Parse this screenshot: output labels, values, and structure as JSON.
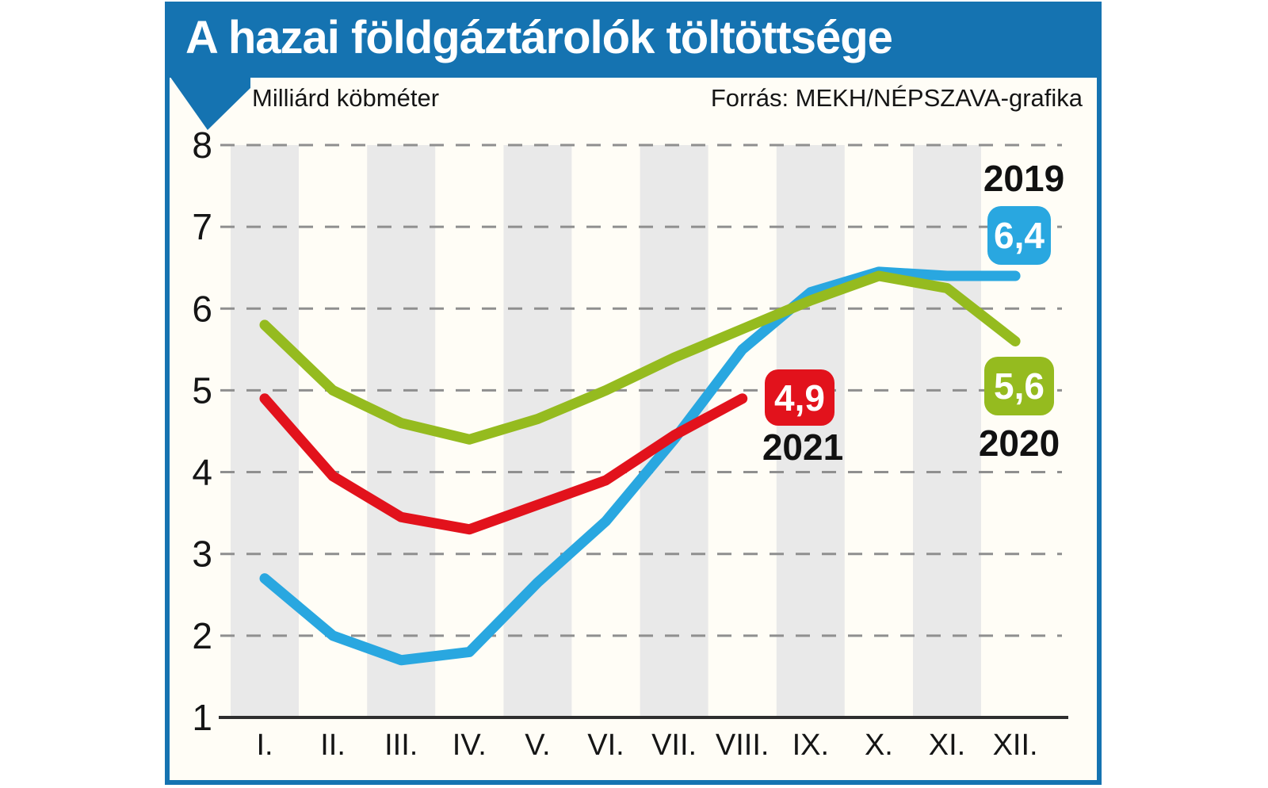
{
  "title": "A hazai földgáztárolók töltöttsége",
  "unit_label": "Milliárd köbméter",
  "source": "Forrás: MEKH/NÉPSZAVA-grafika",
  "colors": {
    "banner": "#1573b1",
    "blue": "#29a7e0",
    "green": "#95bb1f",
    "red": "#e2121c",
    "band": "#e9e9e9",
    "grid": "#8f8f8f",
    "axis": "#2e2e2e",
    "text": "#151515"
  },
  "chart_data": {
    "type": "line",
    "title": "A hazai földgáztárolók töltöttsége",
    "ylabel": "Milliárd köbméter",
    "x_tick_labels": [
      "I.",
      "II.",
      "III.",
      "IV.",
      "V.",
      "VI.",
      "VII.",
      "VIII.",
      "IX.",
      "X.",
      "XI.",
      "XII."
    ],
    "y_ticks": [
      8,
      7,
      6,
      5,
      4,
      3,
      2,
      1
    ],
    "ylim": [
      1,
      8
    ],
    "grid": "dashed horizontal gridlines, alternating vertical shaded month bands",
    "legend_position": "inline labels near line ends",
    "series": [
      {
        "name": "2019",
        "color_key": "blue",
        "color": "#29a7e0",
        "end_label": "6,4",
        "values": [
          2.7,
          2.0,
          1.7,
          1.8,
          2.65,
          3.4,
          4.4,
          5.5,
          6.2,
          6.45,
          6.4,
          6.4
        ]
      },
      {
        "name": "2020",
        "color_key": "green",
        "color": "#95bb1f",
        "end_label": "5,6",
        "values": [
          5.8,
          5.0,
          4.6,
          4.4,
          4.65,
          5.0,
          5.4,
          5.75,
          6.1,
          6.4,
          6.25,
          5.6
        ]
      },
      {
        "name": "2021",
        "color_key": "red",
        "color": "#e2121c",
        "end_label": "4,9",
        "values": [
          4.9,
          3.95,
          3.45,
          3.3,
          3.6,
          3.9,
          4.45,
          4.9
        ]
      }
    ],
    "annotations": [
      {
        "year": "2019",
        "value_label": "6,4"
      },
      {
        "year": "2020",
        "value_label": "5,6"
      },
      {
        "year": "2021",
        "value_label": "4,9"
      }
    ]
  }
}
